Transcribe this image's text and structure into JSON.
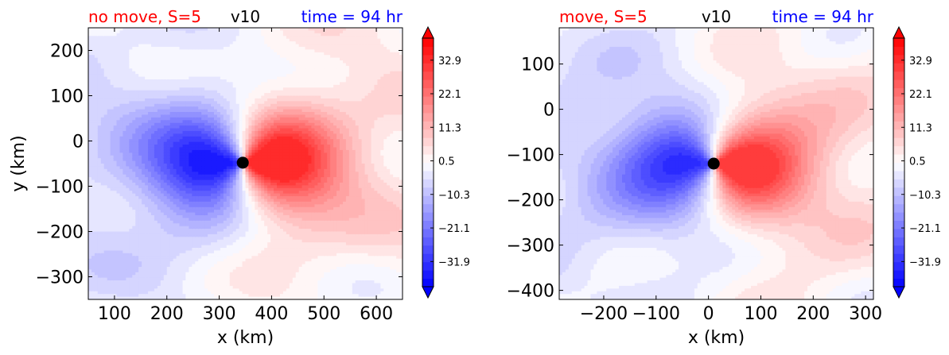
{
  "chart_data": [
    {
      "type": "heatmap",
      "title_left": "no move, S=5",
      "title_center": "v10",
      "title_right": "time = 94 hr",
      "title_colors": {
        "left": "#ff0000",
        "center": "#000000",
        "right": "#0000ff"
      },
      "xlabel": "x (km)",
      "ylabel": "y (km)",
      "xlim": [
        50,
        650
      ],
      "ylim": [
        -350,
        250
      ],
      "xticks": [
        100,
        200,
        300,
        400,
        500,
        600
      ],
      "yticks": [
        -300,
        -200,
        -100,
        0,
        100,
        200
      ],
      "center_marker": {
        "x": 345,
        "y": -48
      },
      "colorbar": {
        "ticks": [
          -31.9,
          -21.1,
          -10.3,
          0.5,
          11.3,
          22.1,
          32.9
        ],
        "tick_labels": [
          "−31.9",
          "−21.1",
          "−10.3",
          "0.5",
          "11.3",
          "22.1",
          "32.9"
        ],
        "range": [
          -40,
          40
        ],
        "extend": "both",
        "cmap": "bwr"
      }
    },
    {
      "type": "heatmap",
      "title_left": "move, S=5",
      "title_center": "v10",
      "title_right": "time = 94 hr",
      "title_colors": {
        "left": "#ff0000",
        "center": "#000000",
        "right": "#0000ff"
      },
      "xlabel": "x (km)",
      "ylabel": "",
      "xlim": [
        -285,
        315
      ],
      "ylim": [
        -420,
        180
      ],
      "xticks": [
        -200,
        -100,
        0,
        100,
        200,
        300
      ],
      "yticks": [
        -400,
        -300,
        -200,
        -100,
        0,
        100
      ],
      "center_marker": {
        "x": 10,
        "y": -120
      },
      "colorbar": {
        "ticks": [
          -31.9,
          -21.1,
          -10.3,
          0.5,
          11.3,
          22.1,
          32.9
        ],
        "tick_labels": [
          "−31.9",
          "−21.1",
          "−10.3",
          "0.5",
          "11.3",
          "22.1",
          "32.9"
        ],
        "range": [
          -40,
          40
        ],
        "extend": "both",
        "cmap": "bwr"
      }
    }
  ]
}
